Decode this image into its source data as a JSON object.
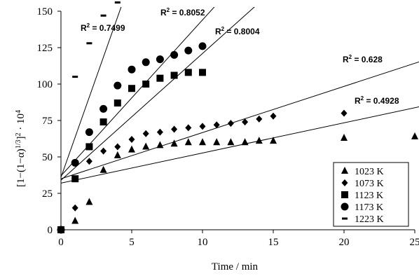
{
  "chart_data": {
    "type": "scatter",
    "xlabel": "Time / min",
    "ylabel": "[1−(1−α)^(1/3)]^2 · 10^4",
    "xlim": [
      0,
      25
    ],
    "ylim": [
      0,
      150
    ],
    "x_ticks": [
      "0",
      "5",
      "10",
      "15",
      "20",
      "25"
    ],
    "y_ticks": [
      "0",
      "25",
      "50",
      "75",
      "100",
      "125",
      "150"
    ],
    "grid": false,
    "legend_position": "bottom-right",
    "series": [
      {
        "name": "1023 K",
        "marker": "triangle",
        "points": [
          [
            0,
            0
          ],
          [
            1,
            6
          ],
          [
            2,
            19
          ],
          [
            3,
            41
          ],
          [
            4,
            51
          ],
          [
            5,
            55
          ],
          [
            6,
            57
          ],
          [
            7,
            58
          ],
          [
            8,
            59
          ],
          [
            9,
            60
          ],
          [
            10,
            60
          ],
          [
            11,
            60
          ],
          [
            12,
            60
          ],
          [
            13,
            60
          ],
          [
            14,
            61
          ],
          [
            15,
            61
          ],
          [
            20,
            63
          ],
          [
            25,
            64
          ]
        ],
        "trend": {
          "intercept": 32,
          "slope": 2.07,
          "r2_text": "0.4928"
        }
      },
      {
        "name": "1073 K",
        "marker": "diamond",
        "points": [
          [
            0,
            0
          ],
          [
            1,
            15
          ],
          [
            2,
            47
          ],
          [
            3,
            54
          ],
          [
            4,
            57
          ],
          [
            5,
            62
          ],
          [
            6,
            66
          ],
          [
            7,
            67
          ],
          [
            8,
            69
          ],
          [
            9,
            70
          ],
          [
            10,
            71
          ],
          [
            11,
            72
          ],
          [
            12,
            73
          ],
          [
            13,
            74
          ],
          [
            14,
            76
          ],
          [
            15,
            78
          ],
          [
            20,
            80
          ]
        ],
        "trend": {
          "intercept": 35,
          "slope": 3.17,
          "r2_text": "0.628"
        }
      },
      {
        "name": "1123 K",
        "marker": "square",
        "points": [
          [
            0,
            0
          ],
          [
            1,
            35
          ],
          [
            2,
            57
          ],
          [
            3,
            74
          ],
          [
            4,
            87
          ],
          [
            5,
            97
          ],
          [
            6,
            100
          ],
          [
            7,
            104
          ],
          [
            8,
            106
          ],
          [
            9,
            108
          ],
          [
            10,
            108
          ]
        ],
        "trend": {
          "intercept": 34,
          "slope": 8.7,
          "r2_text": "0.8004"
        }
      },
      {
        "name": "1173 K",
        "marker": "circle",
        "points": [
          [
            0,
            0
          ],
          [
            1,
            46
          ],
          [
            2,
            67
          ],
          [
            3,
            83
          ],
          [
            4,
            99
          ],
          [
            5,
            110
          ],
          [
            6,
            115
          ],
          [
            7,
            117
          ],
          [
            8,
            120
          ],
          [
            9,
            123
          ],
          [
            10,
            126
          ]
        ],
        "trend": {
          "intercept": 37,
          "slope": 10.7,
          "r2_text": "0.8052"
        }
      },
      {
        "name": "1223 K",
        "marker": "dash",
        "points": [
          [
            0,
            0
          ],
          [
            1,
            105
          ],
          [
            2,
            128
          ],
          [
            3,
            147
          ],
          [
            4,
            156
          ]
        ],
        "trend": {
          "intercept": 36,
          "slope": 27.5,
          "r2_text": "0.7499"
        }
      }
    ],
    "r2_prefix": "R",
    "r2_sup": "2",
    "r2_suffix": " = "
  }
}
